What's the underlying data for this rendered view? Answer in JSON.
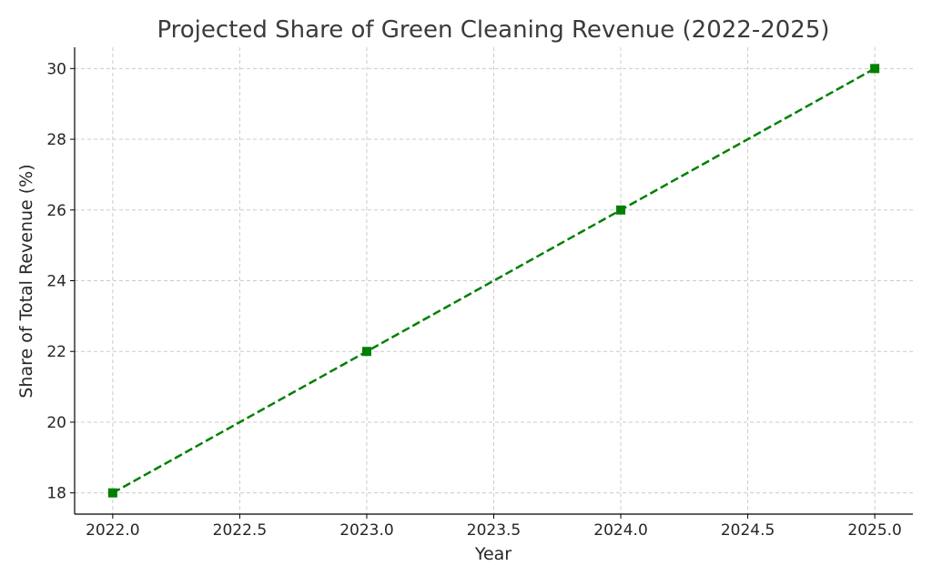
{
  "chart_data": {
    "type": "line",
    "title": "Projected Share of Green Cleaning Revenue (2022-2025)",
    "xlabel": "Year",
    "ylabel": "Share of Total Revenue (%)",
    "x": [
      2022,
      2023,
      2024,
      2025
    ],
    "series": [
      {
        "values": [
          18,
          22,
          26,
          30
        ],
        "color": "#008000",
        "line_style": "dashed",
        "marker": "square"
      }
    ],
    "xlim": [
      2021.85,
      2025.15
    ],
    "ylim": [
      17.4,
      30.6
    ],
    "x_ticks": [
      2022.0,
      2022.5,
      2023.0,
      2023.5,
      2024.0,
      2024.5,
      2025.0
    ],
    "x_tick_labels": [
      "2022.0",
      "2022.5",
      "2023.0",
      "2023.5",
      "2024.0",
      "2024.5",
      "2025.0"
    ],
    "y_ticks": [
      18,
      20,
      22,
      24,
      26,
      28,
      30
    ],
    "y_tick_labels": [
      "18",
      "20",
      "22",
      "24",
      "26",
      "28",
      "30"
    ],
    "grid": true
  }
}
